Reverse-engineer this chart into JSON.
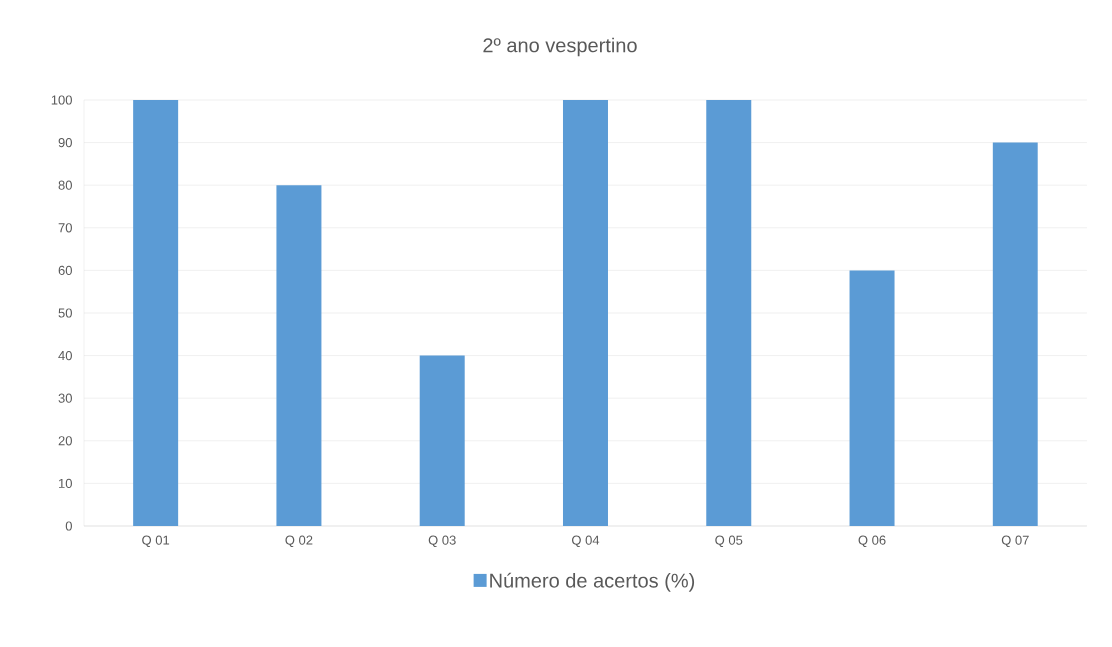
{
  "chart_data": {
    "type": "bar",
    "title": "2º ano vespertino",
    "categories": [
      "Q 01",
      "Q 02",
      "Q 03",
      "Q 04",
      "Q 05",
      "Q 06",
      "Q 07"
    ],
    "series": [
      {
        "name": "Número de acertos (%)",
        "color": "#5b9bd5",
        "values": [
          100,
          80,
          40,
          100,
          100,
          60,
          90
        ]
      }
    ],
    "ylim": [
      0,
      100
    ],
    "yticks": [
      0,
      10,
      20,
      30,
      40,
      50,
      60,
      70,
      80,
      90,
      100
    ],
    "grid": "y",
    "legend": "bottom"
  }
}
